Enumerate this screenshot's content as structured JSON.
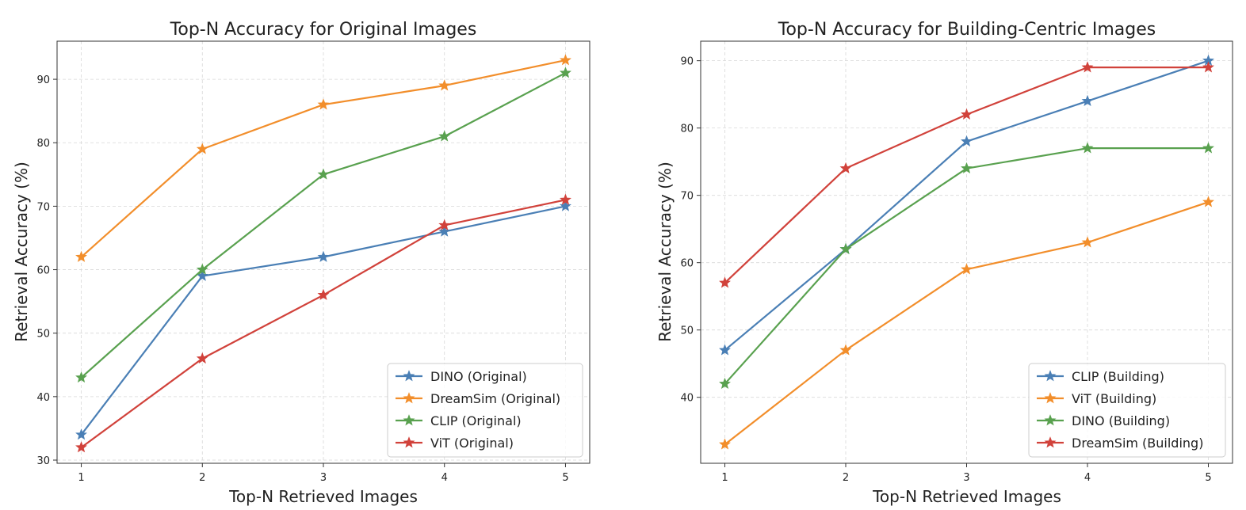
{
  "colors": {
    "blue": "#4a7fb5",
    "orange": "#f28e2b",
    "green": "#59a14f",
    "red": "#d1423b"
  },
  "chart_data": [
    {
      "type": "line",
      "title": "Top-N Accuracy for Original Images",
      "xlabel": "Top-N Retrieved Images",
      "ylabel": "Retrieval Accuracy (%)",
      "x": [
        1,
        2,
        3,
        4,
        5
      ],
      "xticks": [
        "1",
        "2",
        "3",
        "4",
        "5"
      ],
      "yticks": [
        "30",
        "40",
        "50",
        "60",
        "70",
        "80",
        "90"
      ],
      "xlim": [
        0.8,
        5.2
      ],
      "ylim": [
        29.5,
        96
      ],
      "grid": true,
      "legend_position": "lower-right",
      "marker": "star",
      "series": [
        {
          "name": "DINO (Original)",
          "color": "#4a7fb5",
          "values": [
            34,
            59,
            62,
            66,
            70
          ]
        },
        {
          "name": "DreamSim (Original)",
          "color": "#f28e2b",
          "values": [
            62,
            79,
            86,
            89,
            93
          ]
        },
        {
          "name": "CLIP (Original)",
          "color": "#59a14f",
          "values": [
            43,
            60,
            75,
            81,
            91
          ]
        },
        {
          "name": "ViT (Original)",
          "color": "#d1423b",
          "values": [
            32,
            46,
            56,
            67,
            71
          ]
        }
      ]
    },
    {
      "type": "line",
      "title": "Top-N Accuracy for Building-Centric Images",
      "xlabel": "Top-N Retrieved Images",
      "ylabel": "Retrieval Accuracy (%)",
      "x": [
        1,
        2,
        3,
        4,
        5
      ],
      "xticks": [
        "1",
        "2",
        "3",
        "4",
        "5"
      ],
      "yticks": [
        "40",
        "50",
        "60",
        "70",
        "80",
        "90"
      ],
      "xlim": [
        0.8,
        5.2
      ],
      "ylim": [
        30.2,
        92.9
      ],
      "grid": true,
      "legend_position": "lower-right",
      "marker": "star",
      "series": [
        {
          "name": "CLIP (Building)",
          "color": "#4a7fb5",
          "values": [
            47,
            62,
            78,
            84,
            90
          ]
        },
        {
          "name": "ViT (Building)",
          "color": "#f28e2b",
          "values": [
            33,
            47,
            59,
            63,
            69
          ]
        },
        {
          "name": "DINO (Building)",
          "color": "#59a14f",
          "values": [
            42,
            62,
            74,
            77,
            77
          ]
        },
        {
          "name": "DreamSim (Building)",
          "color": "#d1423b",
          "values": [
            57,
            74,
            82,
            89,
            89
          ]
        }
      ]
    }
  ]
}
